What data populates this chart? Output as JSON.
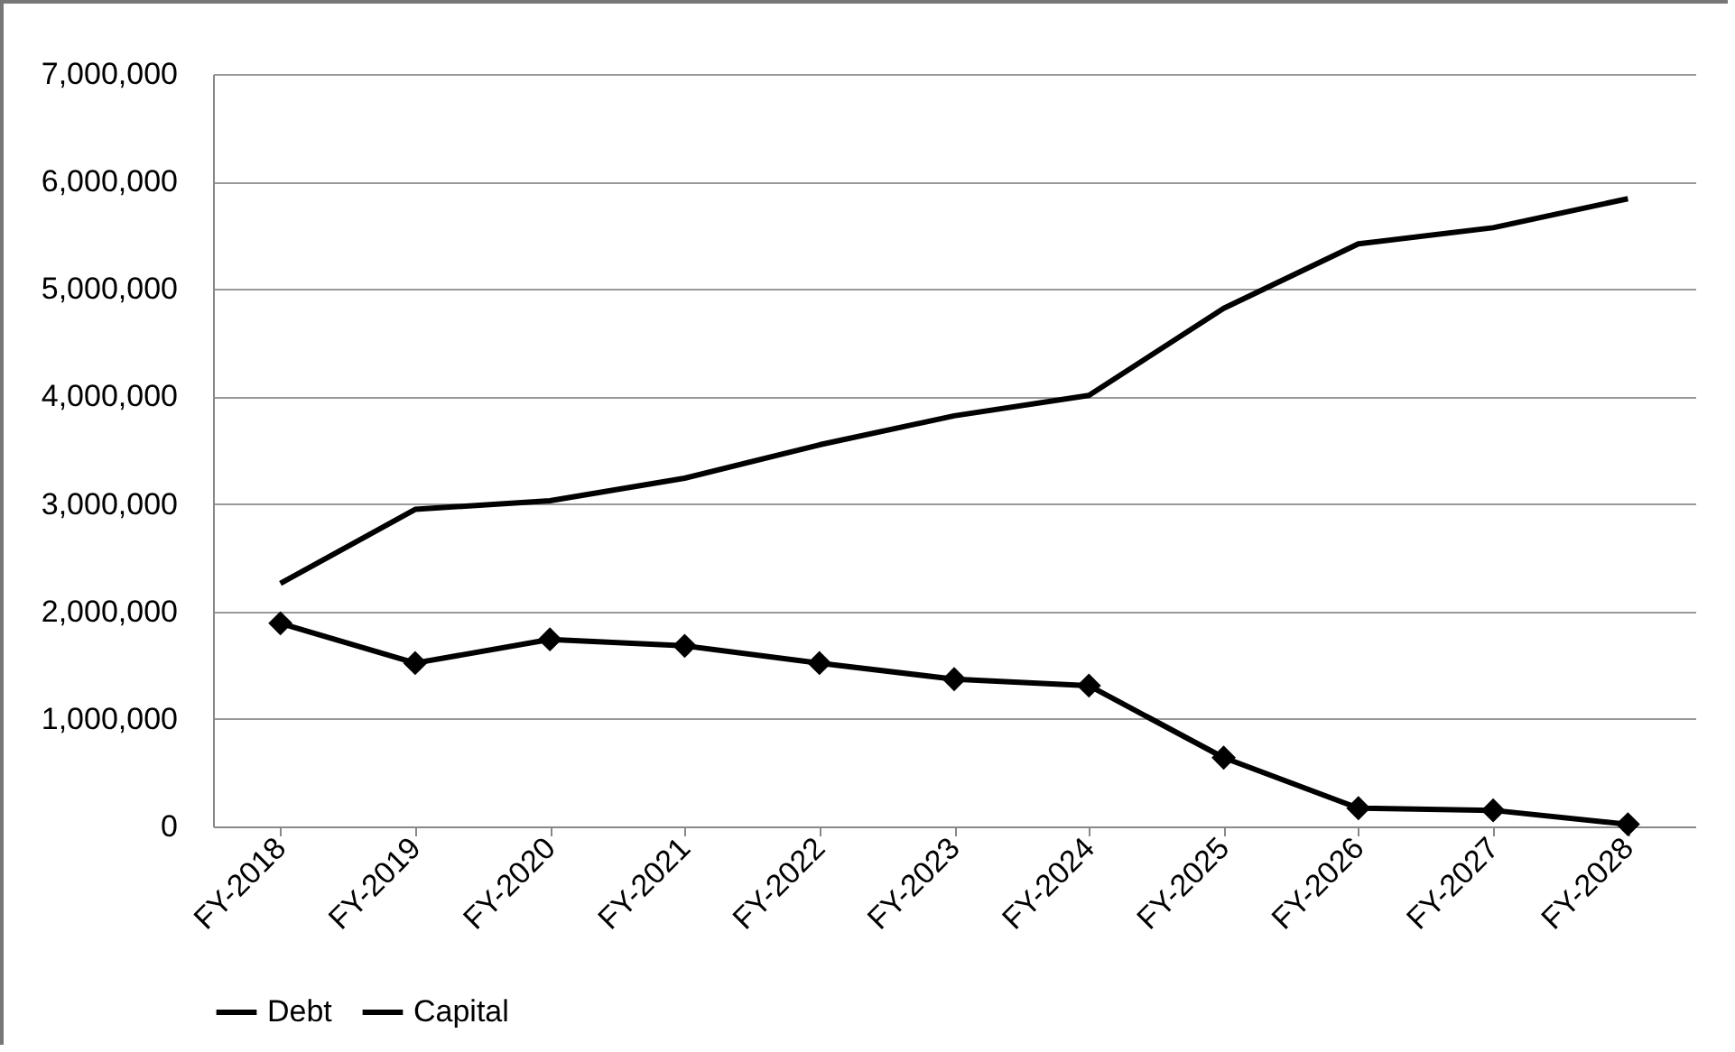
{
  "chart_data": {
    "type": "line",
    "categories": [
      "FY-2018",
      "FY-2019",
      "FY-2020",
      "FY-2021",
      "FY-2022",
      "FY-2023",
      "FY-2024",
      "FY-2025",
      "FY-2026",
      "FY-2027",
      "FY-2028"
    ],
    "series": [
      {
        "name": "Debt",
        "color": "#000000",
        "marker": "diamond",
        "values": [
          1890000,
          1520000,
          1740000,
          1680000,
          1520000,
          1370000,
          1310000,
          640000,
          170000,
          150000,
          20000
        ]
      },
      {
        "name": "Capital",
        "color": "#000000",
        "marker": "none",
        "values": [
          2260000,
          2950000,
          3030000,
          3240000,
          3550000,
          3820000,
          4010000,
          4820000,
          5420000,
          5570000,
          5840000
        ]
      }
    ],
    "ylim": [
      0,
      7000000
    ],
    "yticks": [
      0,
      {
        "value": 1000000,
        "label": "1,000,000"
      },
      {
        "value": 2000000,
        "label": "2,000,000"
      },
      {
        "value": 3000000,
        "label": "3,000,000"
      },
      {
        "value": 4000000,
        "label": "4,000,000"
      },
      {
        "value": 5000000,
        "label": "5,000,000"
      },
      {
        "value": 6000000,
        "label": "6,000,000"
      },
      {
        "value": 7000000,
        "label": "7,000,000"
      }
    ],
    "grid": "y",
    "legend": "bottom",
    "line_style": "solid"
  }
}
